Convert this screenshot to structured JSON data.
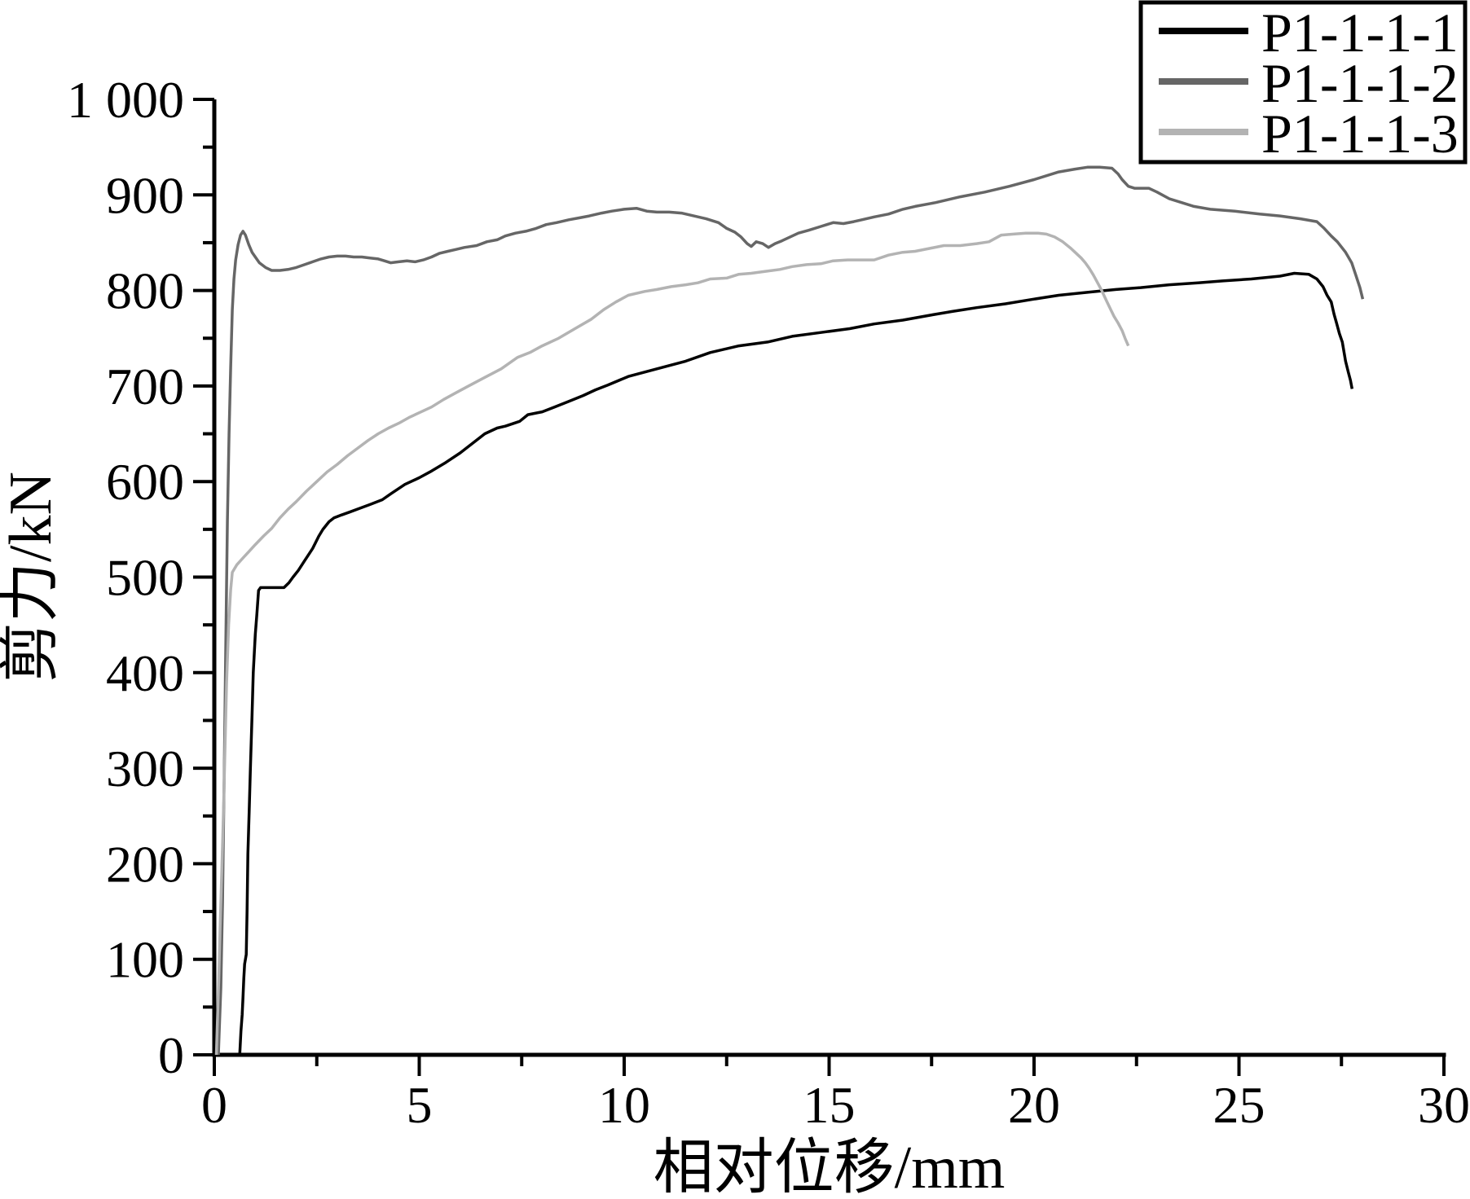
{
  "figure": {
    "background": "#ffffff"
  },
  "chart_data": {
    "type": "line",
    "title": "",
    "xlabel": "相对位移/mm",
    "ylabel": "剪力/kN",
    "xlim": [
      0,
      30
    ],
    "ylim": [
      0,
      1000
    ],
    "grid": false,
    "x_major_ticks": [
      0,
      5,
      10,
      15,
      20,
      25,
      30
    ],
    "x_tick_labels": [
      "0",
      "5",
      "10",
      "15",
      "20",
      "25",
      "30"
    ],
    "x_minor_ticks": [
      2.5,
      7.5,
      12.5,
      17.5,
      22.5,
      27.5
    ],
    "y_major_ticks": [
      0,
      100,
      200,
      300,
      400,
      500,
      600,
      700,
      800,
      900,
      1000
    ],
    "y_tick_labels": [
      "0",
      "100",
      "200",
      "300",
      "400",
      "500",
      "600",
      "700",
      "800",
      "900",
      "1 000"
    ],
    "y_minor_ticks": [
      50,
      150,
      250,
      350,
      450,
      550,
      650,
      750,
      850,
      950
    ],
    "legend": {
      "position": "top-right",
      "entries": [
        {
          "label": "P1-1-1-1",
          "color": "#000000"
        },
        {
          "label": "P1-1-1-2",
          "color": "#666666"
        },
        {
          "label": "P1-1-1-3",
          "color": "#b3b3b3"
        }
      ]
    },
    "series": [
      {
        "name": "P1-1-1-1",
        "color": "#000000",
        "points": [
          [
            0.62,
            0
          ],
          [
            0.65,
            25
          ],
          [
            0.68,
            42
          ],
          [
            0.7,
            60
          ],
          [
            0.72,
            80
          ],
          [
            0.74,
            95
          ],
          [
            0.78,
            105
          ],
          [
            0.8,
            150
          ],
          [
            0.82,
            210
          ],
          [
            0.85,
            255
          ],
          [
            0.88,
            300
          ],
          [
            0.92,
            355
          ],
          [
            0.95,
            400
          ],
          [
            1.0,
            440
          ],
          [
            1.04,
            462
          ],
          [
            1.08,
            486
          ],
          [
            1.13,
            489
          ],
          [
            1.7,
            489
          ],
          [
            1.82,
            494
          ],
          [
            1.92,
            500
          ],
          [
            2.05,
            507
          ],
          [
            2.2,
            517
          ],
          [
            2.4,
            530
          ],
          [
            2.55,
            543
          ],
          [
            2.65,
            550
          ],
          [
            2.8,
            558
          ],
          [
            2.92,
            562
          ],
          [
            3.1,
            565
          ],
          [
            3.3,
            568
          ],
          [
            3.55,
            572
          ],
          [
            3.8,
            576
          ],
          [
            4.1,
            581
          ],
          [
            4.3,
            587
          ],
          [
            4.65,
            597
          ],
          [
            5.0,
            604
          ],
          [
            5.3,
            611
          ],
          [
            5.65,
            620
          ],
          [
            6.0,
            630
          ],
          [
            6.3,
            640
          ],
          [
            6.6,
            650
          ],
          [
            6.9,
            656
          ],
          [
            7.1,
            658
          ],
          [
            7.45,
            663
          ],
          [
            7.65,
            670
          ],
          [
            8.0,
            673
          ],
          [
            8.3,
            678
          ],
          [
            8.65,
            684
          ],
          [
            9.0,
            690
          ],
          [
            9.3,
            696
          ],
          [
            9.6,
            701
          ],
          [
            10.1,
            710
          ],
          [
            10.8,
            718
          ],
          [
            11.5,
            726
          ],
          [
            12.1,
            735
          ],
          [
            12.8,
            742
          ],
          [
            13.5,
            746
          ],
          [
            14.1,
            752
          ],
          [
            14.8,
            756
          ],
          [
            15.5,
            760
          ],
          [
            16.1,
            765
          ],
          [
            16.8,
            769
          ],
          [
            17.45,
            774
          ],
          [
            18.0,
            778
          ],
          [
            18.6,
            782
          ],
          [
            19.3,
            786
          ],
          [
            20.0,
            791
          ],
          [
            20.6,
            795
          ],
          [
            21.3,
            798
          ],
          [
            22.0,
            801
          ],
          [
            22.6,
            803
          ],
          [
            23.3,
            806
          ],
          [
            24.0,
            808
          ],
          [
            24.6,
            810
          ],
          [
            25.3,
            812
          ],
          [
            26.0,
            815
          ],
          [
            26.35,
            818
          ],
          [
            26.7,
            817
          ],
          [
            26.9,
            812
          ],
          [
            27.05,
            804
          ],
          [
            27.15,
            795
          ],
          [
            27.25,
            788
          ],
          [
            27.32,
            775
          ],
          [
            27.38,
            766
          ],
          [
            27.45,
            755
          ],
          [
            27.52,
            746
          ],
          [
            27.6,
            726
          ],
          [
            27.67,
            714
          ],
          [
            27.72,
            706
          ],
          [
            27.76,
            697
          ]
        ]
      },
      {
        "name": "P1-1-1-2",
        "color": "#666666",
        "points": [
          [
            0.1,
            0
          ],
          [
            0.13,
            35
          ],
          [
            0.16,
            70
          ],
          [
            0.2,
            160
          ],
          [
            0.24,
            290
          ],
          [
            0.28,
            430
          ],
          [
            0.32,
            560
          ],
          [
            0.36,
            650
          ],
          [
            0.4,
            720
          ],
          [
            0.44,
            780
          ],
          [
            0.48,
            812
          ],
          [
            0.52,
            832
          ],
          [
            0.58,
            848
          ],
          [
            0.64,
            858
          ],
          [
            0.7,
            862
          ],
          [
            0.76,
            858
          ],
          [
            0.84,
            848
          ],
          [
            0.92,
            840
          ],
          [
            1.0,
            835
          ],
          [
            1.1,
            829
          ],
          [
            1.25,
            824
          ],
          [
            1.4,
            821
          ],
          [
            1.6,
            821
          ],
          [
            1.8,
            822
          ],
          [
            2.0,
            824
          ],
          [
            2.2,
            827
          ],
          [
            2.4,
            830
          ],
          [
            2.6,
            833
          ],
          [
            2.8,
            835
          ],
          [
            3.0,
            836
          ],
          [
            3.2,
            836
          ],
          [
            3.4,
            835
          ],
          [
            3.6,
            835
          ],
          [
            3.8,
            834
          ],
          [
            4.0,
            833
          ],
          [
            4.15,
            831
          ],
          [
            4.3,
            829
          ],
          [
            4.5,
            830
          ],
          [
            4.7,
            831
          ],
          [
            4.9,
            830
          ],
          [
            5.1,
            832
          ],
          [
            5.3,
            835
          ],
          [
            5.5,
            839
          ],
          [
            5.7,
            841
          ],
          [
            5.9,
            843
          ],
          [
            6.1,
            845
          ],
          [
            6.4,
            847
          ],
          [
            6.65,
            851
          ],
          [
            6.9,
            853
          ],
          [
            7.1,
            857
          ],
          [
            7.35,
            860
          ],
          [
            7.6,
            862
          ],
          [
            7.85,
            865
          ],
          [
            8.1,
            869
          ],
          [
            8.35,
            871
          ],
          [
            8.65,
            874
          ],
          [
            8.9,
            876
          ],
          [
            9.15,
            878
          ],
          [
            9.45,
            881
          ],
          [
            9.7,
            883
          ],
          [
            10.0,
            885
          ],
          [
            10.3,
            886
          ],
          [
            10.55,
            883
          ],
          [
            10.8,
            882
          ],
          [
            11.1,
            882
          ],
          [
            11.4,
            881
          ],
          [
            11.7,
            878
          ],
          [
            12.0,
            875
          ],
          [
            12.3,
            871
          ],
          [
            12.5,
            865
          ],
          [
            12.7,
            861
          ],
          [
            12.85,
            856
          ],
          [
            13.0,
            849
          ],
          [
            13.1,
            846
          ],
          [
            13.22,
            851
          ],
          [
            13.38,
            849
          ],
          [
            13.52,
            845
          ],
          [
            13.68,
            849
          ],
          [
            13.85,
            852
          ],
          [
            14.0,
            855
          ],
          [
            14.25,
            860
          ],
          [
            14.5,
            863
          ],
          [
            14.8,
            867
          ],
          [
            15.1,
            871
          ],
          [
            15.35,
            870
          ],
          [
            15.6,
            872
          ],
          [
            15.8,
            874
          ],
          [
            16.1,
            877
          ],
          [
            16.45,
            880
          ],
          [
            16.8,
            885
          ],
          [
            17.1,
            888
          ],
          [
            17.6,
            892
          ],
          [
            18.2,
            898
          ],
          [
            18.8,
            903
          ],
          [
            19.4,
            909
          ],
          [
            20.0,
            916
          ],
          [
            20.6,
            924
          ],
          [
            21.0,
            927
          ],
          [
            21.3,
            929
          ],
          [
            21.6,
            929
          ],
          [
            21.9,
            928
          ],
          [
            22.05,
            922
          ],
          [
            22.15,
            916
          ],
          [
            22.3,
            909
          ],
          [
            22.45,
            907
          ],
          [
            22.8,
            907
          ],
          [
            23.0,
            903
          ],
          [
            23.3,
            896
          ],
          [
            23.6,
            892
          ],
          [
            23.9,
            888
          ],
          [
            24.3,
            885
          ],
          [
            24.9,
            883
          ],
          [
            25.5,
            880
          ],
          [
            26.0,
            878
          ],
          [
            26.5,
            875
          ],
          [
            26.9,
            872
          ],
          [
            27.08,
            865
          ],
          [
            27.25,
            857
          ],
          [
            27.4,
            851
          ],
          [
            27.6,
            840
          ],
          [
            27.75,
            829
          ],
          [
            27.85,
            816
          ],
          [
            27.95,
            803
          ],
          [
            28.02,
            791
          ]
        ]
      },
      {
        "name": "P1-1-1-3",
        "color": "#b3b3b3",
        "points": [
          [
            0.05,
            0
          ],
          [
            0.08,
            40
          ],
          [
            0.11,
            80
          ],
          [
            0.14,
            130
          ],
          [
            0.18,
            190
          ],
          [
            0.22,
            250
          ],
          [
            0.26,
            320
          ],
          [
            0.3,
            390
          ],
          [
            0.35,
            450
          ],
          [
            0.4,
            487
          ],
          [
            0.44,
            505
          ],
          [
            0.55,
            513
          ],
          [
            0.7,
            520
          ],
          [
            0.85,
            527
          ],
          [
            1.0,
            534
          ],
          [
            1.2,
            543
          ],
          [
            1.4,
            551
          ],
          [
            1.6,
            562
          ],
          [
            1.8,
            571
          ],
          [
            2.0,
            579
          ],
          [
            2.25,
            590
          ],
          [
            2.5,
            600
          ],
          [
            2.75,
            610
          ],
          [
            3.0,
            618
          ],
          [
            3.25,
            627
          ],
          [
            3.5,
            635
          ],
          [
            3.75,
            643
          ],
          [
            4.0,
            650
          ],
          [
            4.25,
            656
          ],
          [
            4.5,
            661
          ],
          [
            4.75,
            667
          ],
          [
            5.0,
            672
          ],
          [
            5.3,
            678
          ],
          [
            5.6,
            686
          ],
          [
            5.9,
            693
          ],
          [
            6.2,
            700
          ],
          [
            6.6,
            709
          ],
          [
            7.0,
            718
          ],
          [
            7.4,
            730
          ],
          [
            7.7,
            735
          ],
          [
            8.0,
            742
          ],
          [
            8.4,
            750
          ],
          [
            8.8,
            760
          ],
          [
            9.2,
            770
          ],
          [
            9.5,
            780
          ],
          [
            9.8,
            788
          ],
          [
            10.1,
            795
          ],
          [
            10.5,
            799
          ],
          [
            10.8,
            801
          ],
          [
            11.15,
            804
          ],
          [
            11.5,
            806
          ],
          [
            11.8,
            808
          ],
          [
            12.1,
            812
          ],
          [
            12.5,
            813
          ],
          [
            12.8,
            817
          ],
          [
            13.1,
            818
          ],
          [
            13.45,
            820
          ],
          [
            13.8,
            822
          ],
          [
            14.1,
            825
          ],
          [
            14.45,
            827
          ],
          [
            14.8,
            828
          ],
          [
            15.1,
            831
          ],
          [
            15.45,
            832
          ],
          [
            15.8,
            832
          ],
          [
            16.1,
            832
          ],
          [
            16.45,
            837
          ],
          [
            16.8,
            840
          ],
          [
            17.1,
            841
          ],
          [
            17.45,
            844
          ],
          [
            17.8,
            847
          ],
          [
            18.2,
            847
          ],
          [
            18.6,
            849
          ],
          [
            18.9,
            851
          ],
          [
            19.2,
            858
          ],
          [
            19.5,
            859
          ],
          [
            19.8,
            860
          ],
          [
            20.1,
            860
          ],
          [
            20.3,
            859
          ],
          [
            20.5,
            856
          ],
          [
            20.7,
            851
          ],
          [
            20.9,
            844
          ],
          [
            21.0,
            840
          ],
          [
            21.15,
            834
          ],
          [
            21.25,
            829
          ],
          [
            21.35,
            823
          ],
          [
            21.45,
            816
          ],
          [
            21.55,
            808
          ],
          [
            21.65,
            800
          ],
          [
            21.77,
            789
          ],
          [
            21.87,
            780
          ],
          [
            21.95,
            773
          ],
          [
            22.05,
            766
          ],
          [
            22.15,
            758
          ],
          [
            22.22,
            750
          ],
          [
            22.3,
            742
          ]
        ]
      }
    ]
  }
}
